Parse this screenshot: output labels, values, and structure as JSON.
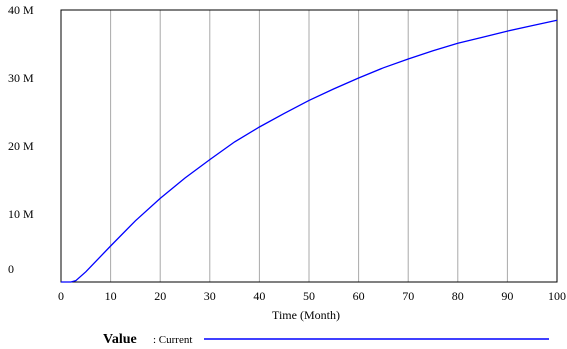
{
  "chart_data": {
    "type": "line",
    "xlabel": "Time (Month)",
    "ylabel": "",
    "xlim": [
      0,
      100
    ],
    "ylim": [
      0,
      40000000
    ],
    "x_ticks": [
      0,
      10,
      20,
      30,
      40,
      50,
      60,
      70,
      80,
      90,
      100
    ],
    "x_tick_labels": [
      "0",
      "10",
      "20",
      "30",
      "40",
      "50",
      "60",
      "70",
      "80",
      "90",
      "100"
    ],
    "y_ticks": [
      0,
      10000000,
      20000000,
      30000000,
      40000000
    ],
    "y_tick_labels": [
      "0",
      "10 M",
      "20 M",
      "30 M",
      "40 M"
    ],
    "grid": "vertical",
    "legend": {
      "variable": "Value",
      "run_label": ": Current",
      "placement": "bottom"
    },
    "series": [
      {
        "name": "Current",
        "color": "#0000ff",
        "x": [
          0,
          1,
          2,
          3,
          5,
          10,
          15,
          20,
          25,
          30,
          35,
          40,
          45,
          50,
          55,
          60,
          65,
          70,
          75,
          80,
          85,
          90,
          95,
          100
        ],
        "y": [
          0,
          0,
          0,
          200000,
          1500000,
          5300000,
          9000000,
          12300000,
          15300000,
          18000000,
          20600000,
          22800000,
          24800000,
          26700000,
          28400000,
          30000000,
          31500000,
          32800000,
          34000000,
          35100000,
          36000000,
          36900000,
          37700000,
          38500000
        ]
      }
    ]
  }
}
